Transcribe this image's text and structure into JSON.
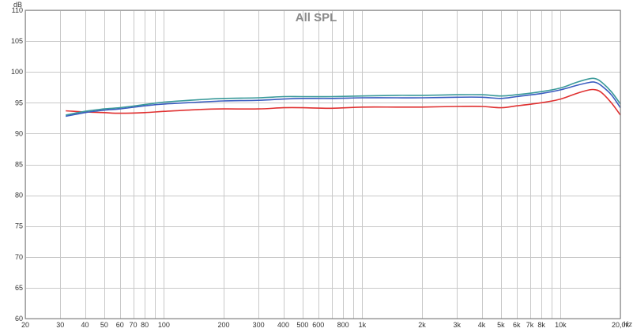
{
  "chart_data": {
    "type": "line",
    "title": "All SPL",
    "ylabel": "dB",
    "xlabel": "Hz",
    "xscale": "log",
    "xlim": [
      20,
      20000
    ],
    "ylim": [
      60,
      110
    ],
    "grid": true,
    "legend": "none",
    "yticks": [
      60,
      65,
      70,
      75,
      80,
      85,
      90,
      95,
      100,
      105,
      110
    ],
    "xticks": [
      {
        "v": 20,
        "label": "20"
      },
      {
        "v": 30,
        "label": "30"
      },
      {
        "v": 40,
        "label": "40"
      },
      {
        "v": 50,
        "label": "50"
      },
      {
        "v": 60,
        "label": "60"
      },
      {
        "v": 70,
        "label": "70"
      },
      {
        "v": 80,
        "label": "80"
      },
      {
        "v": 100,
        "label": "100"
      },
      {
        "v": 200,
        "label": "200"
      },
      {
        "v": 300,
        "label": "300"
      },
      {
        "v": 400,
        "label": "400"
      },
      {
        "v": 500,
        "label": "500"
      },
      {
        "v": 600,
        "label": "600"
      },
      {
        "v": 800,
        "label": "800"
      },
      {
        "v": 1000,
        "label": "1k"
      },
      {
        "v": 2000,
        "label": "2k"
      },
      {
        "v": 3000,
        "label": "3k"
      },
      {
        "v": 4000,
        "label": "4k"
      },
      {
        "v": 5000,
        "label": "5k"
      },
      {
        "v": 6000,
        "label": "6k"
      },
      {
        "v": 7000,
        "label": "7k"
      },
      {
        "v": 8000,
        "label": "8k"
      },
      {
        "v": 10000,
        "label": "10k"
      },
      {
        "v": 20000,
        "label": "20,0k"
      }
    ],
    "minor_x": [
      90,
      700,
      900,
      9000
    ],
    "series": [
      {
        "color": "#e03030",
        "x": [
          32,
          40,
          50,
          60,
          80,
          100,
          150,
          200,
          300,
          400,
          500,
          700,
          1000,
          1500,
          2000,
          3000,
          4000,
          5000,
          6000,
          8000,
          10000,
          12000,
          14000,
          15000,
          16000,
          18000,
          20000
        ],
        "y": [
          93.7,
          93.5,
          93.4,
          93.3,
          93.4,
          93.6,
          93.9,
          94.0,
          94.0,
          94.2,
          94.2,
          94.1,
          94.3,
          94.3,
          94.3,
          94.4,
          94.4,
          94.2,
          94.5,
          95.0,
          95.6,
          96.5,
          97.1,
          97.1,
          96.7,
          95.0,
          93.0
        ]
      },
      {
        "color": "#3a9a9a",
        "x": [
          32,
          40,
          50,
          60,
          80,
          100,
          150,
          200,
          300,
          400,
          500,
          700,
          1000,
          1500,
          2000,
          3000,
          4000,
          5000,
          6000,
          8000,
          10000,
          12000,
          14000,
          15000,
          16000,
          18000,
          20000
        ],
        "y": [
          93.0,
          93.6,
          94.0,
          94.2,
          94.7,
          95.1,
          95.5,
          95.7,
          95.8,
          96.0,
          96.0,
          96.0,
          96.1,
          96.2,
          96.2,
          96.3,
          96.3,
          96.1,
          96.3,
          96.8,
          97.4,
          98.3,
          98.9,
          98.9,
          98.4,
          96.8,
          94.8
        ]
      },
      {
        "color": "#3a5cc0",
        "x": [
          32,
          40,
          50,
          60,
          80,
          100,
          150,
          200,
          300,
          400,
          500,
          700,
          1000,
          1500,
          2000,
          3000,
          4000,
          5000,
          6000,
          8000,
          10000,
          12000,
          14000,
          15000,
          16000,
          18000,
          20000
        ],
        "y": [
          92.8,
          93.4,
          93.8,
          94.0,
          94.5,
          94.8,
          95.1,
          95.3,
          95.4,
          95.6,
          95.7,
          95.7,
          95.8,
          95.8,
          95.8,
          95.9,
          95.9,
          95.7,
          96.0,
          96.5,
          97.1,
          97.8,
          98.3,
          98.3,
          97.8,
          96.3,
          94.2
        ]
      }
    ]
  }
}
